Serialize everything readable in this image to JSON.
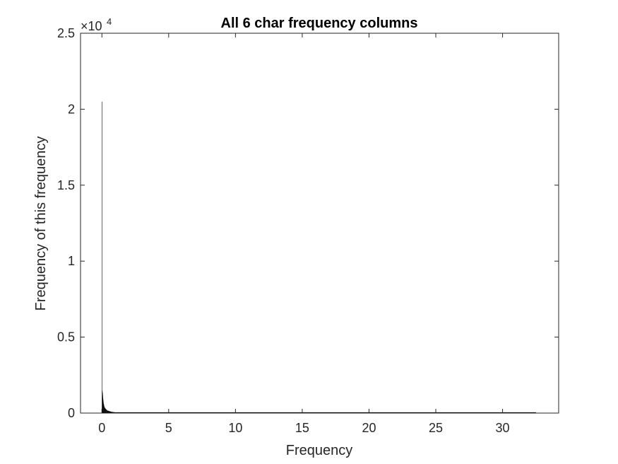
{
  "chart_data": {
    "type": "bar",
    "title": "All 6 char frequency columns",
    "xlabel": "Frequency",
    "ylabel": "Frequency of this frequency",
    "exponent_base": "×10",
    "exponent_power": "4",
    "xlim": [
      -1.6,
      34.2
    ],
    "ylim": [
      0,
      25000
    ],
    "xticks": [
      0,
      5,
      10,
      15,
      20,
      25,
      30
    ],
    "yticks": [
      0,
      5000,
      10000,
      15000,
      20000,
      25000
    ],
    "xtick_labels": [
      "0",
      "5",
      "10",
      "15",
      "20",
      "25",
      "30"
    ],
    "ytick_labels": [
      "0",
      "0.5",
      "1",
      "1.5",
      "2",
      "2.5"
    ],
    "bar_color": "#000000",
    "bin_width": 0.0125,
    "x_max_data": 32.5,
    "bins": [
      {
        "x": 0.0125,
        "y": 20500
      },
      {
        "x": 0.025,
        "y": 1500
      },
      {
        "x": 0.0375,
        "y": 1400
      },
      {
        "x": 0.05,
        "y": 1300
      },
      {
        "x": 0.0625,
        "y": 1150
      },
      {
        "x": 0.075,
        "y": 1000
      },
      {
        "x": 0.0875,
        "y": 900
      },
      {
        "x": 0.1,
        "y": 800
      },
      {
        "x": 0.125,
        "y": 700
      },
      {
        "x": 0.15,
        "y": 600
      },
      {
        "x": 0.175,
        "y": 500
      },
      {
        "x": 0.2,
        "y": 420
      },
      {
        "x": 0.25,
        "y": 350
      },
      {
        "x": 0.3,
        "y": 290
      },
      {
        "x": 0.35,
        "y": 240
      },
      {
        "x": 0.4,
        "y": 200
      },
      {
        "x": 0.5,
        "y": 160
      },
      {
        "x": 0.6,
        "y": 130
      },
      {
        "x": 0.7,
        "y": 100
      },
      {
        "x": 0.8,
        "y": 80
      },
      {
        "x": 0.9,
        "y": 65
      },
      {
        "x": 1.0,
        "y": 50
      },
      {
        "x": 1.2,
        "y": 40
      },
      {
        "x": 1.4,
        "y": 30
      },
      {
        "x": 1.6,
        "y": 24
      },
      {
        "x": 1.8,
        "y": 18
      },
      {
        "x": 2.0,
        "y": 14
      },
      {
        "x": 2.5,
        "y": 10
      },
      {
        "x": 3.0,
        "y": 7
      }
    ]
  }
}
